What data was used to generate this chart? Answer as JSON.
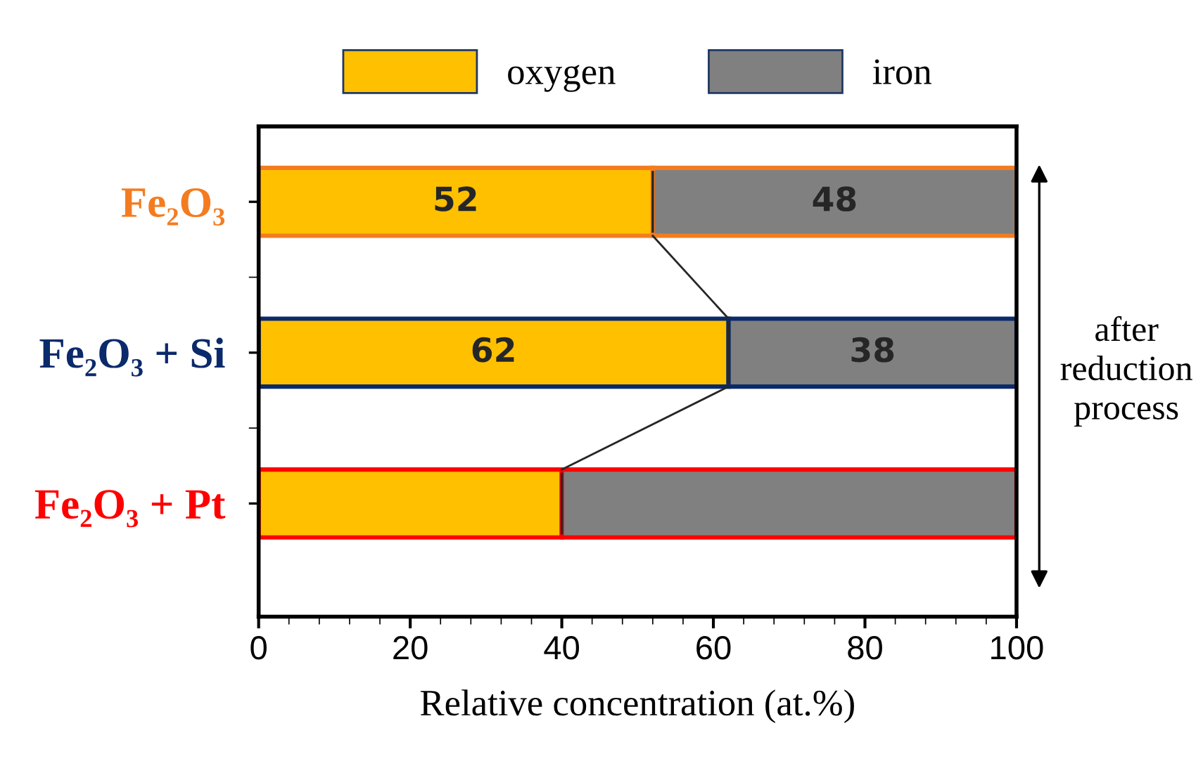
{
  "chart_data": {
    "type": "bar",
    "orientation": "horizontal",
    "stacked": true,
    "xlabel": "Relative concentration (at.%)",
    "categories": [
      "Fe₂O₃",
      "Fe₂O₃ + Si",
      "Fe₂O₃ + Pt"
    ],
    "series": [
      {
        "name": "oxygen",
        "color": "#ffc000",
        "values": [
          52,
          62,
          40
        ],
        "value_labels": [
          "52",
          "62",
          null
        ]
      },
      {
        "name": "iron",
        "color": "#808080",
        "values": [
          48,
          38,
          60
        ],
        "value_labels": [
          "48",
          "38",
          null
        ]
      }
    ],
    "xlim": [
      0,
      100
    ],
    "xticks": [
      0,
      20,
      40,
      60,
      80,
      100
    ],
    "annotations": [
      "after\nreduction\nprocess"
    ],
    "grid": false,
    "legend": "top"
  }
}
